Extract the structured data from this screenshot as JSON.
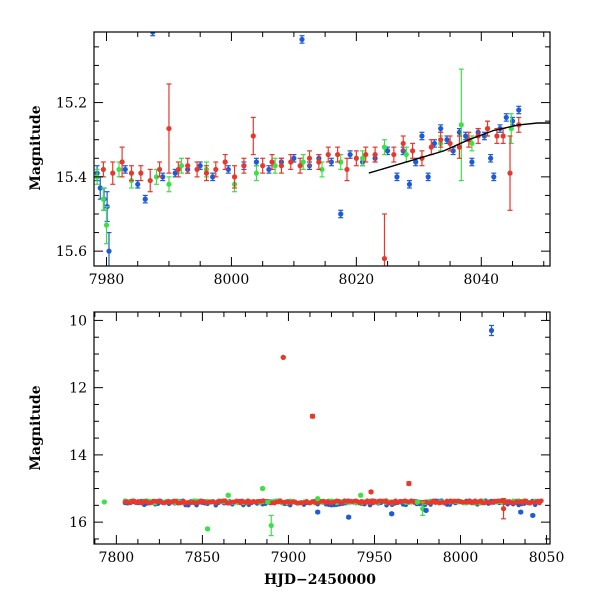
{
  "colors": {
    "blue": "#1f5bd6",
    "red": "#e8382c",
    "green": "#3ee04a",
    "model": "#000000",
    "axes": "#000000"
  },
  "chart_data": [
    {
      "type": "scatter",
      "panel": "top",
      "xlabel": "",
      "ylabel": "Magnitude",
      "xlim": [
        7978,
        8051
      ],
      "ylim": [
        15.64,
        15.01
      ],
      "y_inverted": true,
      "x_ticks": [
        7980,
        8000,
        8020,
        8040
      ],
      "x_tick_labels": [
        "7980",
        "8000",
        "8020",
        "8040"
      ],
      "y_ticks": [
        15.2,
        15.4,
        15.6
      ],
      "y_tick_labels": [
        "15.2",
        "15.4",
        "15.6"
      ],
      "grid": false,
      "series": [
        {
          "color": "blue",
          "points": [
            [
              7978.5,
              15.39,
              0.02
            ],
            [
              7979.0,
              15.43,
              0.03
            ],
            [
              7979.6,
              15.46,
              0.03
            ],
            [
              7980.1,
              15.48,
              0.04
            ],
            [
              7980.4,
              15.6,
              0.05
            ],
            [
              7983.0,
              15.38,
              0.01
            ],
            [
              7985.0,
              15.42,
              0.01
            ],
            [
              7986.2,
              15.46,
              0.01
            ],
            [
              7987.4,
              15.01,
              0.01
            ],
            [
              7989.0,
              15.4,
              0.01
            ],
            [
              7991.0,
              15.39,
              0.01
            ],
            [
              7993.0,
              15.38,
              0.01
            ],
            [
              7995.0,
              15.37,
              0.01
            ],
            [
              7997.0,
              15.4,
              0.01
            ],
            [
              7999.5,
              15.38,
              0.01
            ],
            [
              8002.0,
              15.37,
              0.01
            ],
            [
              8004.0,
              15.36,
              0.01
            ],
            [
              8006.0,
              15.38,
              0.01
            ],
            [
              8008.0,
              15.36,
              0.01
            ],
            [
              8010.0,
              15.35,
              0.01
            ],
            [
              8011.3,
              15.03,
              0.01
            ],
            [
              8012.5,
              15.37,
              0.01
            ],
            [
              8014.0,
              15.35,
              0.01
            ],
            [
              8016.0,
              15.36,
              0.01
            ],
            [
              8017.5,
              15.5,
              0.01
            ],
            [
              8019.0,
              15.34,
              0.01
            ],
            [
              8021.0,
              15.36,
              0.01
            ],
            [
              8023.0,
              15.35,
              0.01
            ],
            [
              8025.0,
              15.33,
              0.01
            ],
            [
              8026.5,
              15.4,
              0.01
            ],
            [
              8027.5,
              15.33,
              0.01
            ],
            [
              8028.5,
              15.42,
              0.01
            ],
            [
              8029.5,
              15.36,
              0.01
            ],
            [
              8030.5,
              15.29,
              0.01
            ],
            [
              8031.5,
              15.4,
              0.01
            ],
            [
              8032.5,
              15.31,
              0.01
            ],
            [
              8033.5,
              15.27,
              0.01
            ],
            [
              8034.5,
              15.3,
              0.01
            ],
            [
              8035.5,
              15.33,
              0.01
            ],
            [
              8036.5,
              15.28,
              0.01
            ],
            [
              8037.5,
              15.29,
              0.01
            ],
            [
              8038.5,
              15.36,
              0.01
            ],
            [
              8039.5,
              15.28,
              0.01
            ],
            [
              8040.5,
              15.29,
              0.01
            ],
            [
              8041.5,
              15.35,
              0.01
            ],
            [
              8042.0,
              15.4,
              0.01
            ],
            [
              8043.0,
              15.27,
              0.01
            ],
            [
              8044.0,
              15.24,
              0.01
            ],
            [
              8045.0,
              15.25,
              0.01
            ],
            [
              8046.0,
              15.22,
              0.01
            ]
          ]
        },
        {
          "color": "green",
          "points": [
            [
              7978.5,
              15.4,
              0.02
            ],
            [
              7979.5,
              15.46,
              0.03
            ],
            [
              7980.0,
              15.53,
              0.05
            ],
            [
              7982.0,
              15.38,
              0.02
            ],
            [
              7984.0,
              15.41,
              0.02
            ],
            [
              7988.0,
              15.4,
              0.02
            ],
            [
              7990.0,
              15.42,
              0.02
            ],
            [
              7992.0,
              15.37,
              0.02
            ],
            [
              7996.0,
              15.38,
              0.02
            ],
            [
              8000.5,
              15.42,
              0.02
            ],
            [
              8004.0,
              15.39,
              0.02
            ],
            [
              8007.0,
              15.37,
              0.02
            ],
            [
              8011.5,
              15.36,
              0.02
            ],
            [
              8014.5,
              15.38,
              0.02
            ],
            [
              8017.5,
              15.36,
              0.02
            ],
            [
              8021.0,
              15.35,
              0.02
            ],
            [
              8024.5,
              15.32,
              0.02
            ],
            [
              8028.0,
              15.34,
              0.02
            ],
            [
              8033.5,
              15.31,
              0.02
            ],
            [
              8036.8,
              15.26,
              0.15
            ],
            [
              8038.5,
              15.31,
              0.02
            ],
            [
              8041.0,
              15.27,
              0.02
            ],
            [
              8044.8,
              15.27,
              0.04
            ]
          ]
        },
        {
          "color": "red",
          "points": [
            [
              7979.5,
              15.38,
              0.02
            ],
            [
              7981.0,
              15.39,
              0.03
            ],
            [
              7982.5,
              15.36,
              0.04
            ],
            [
              7984.0,
              15.39,
              0.02
            ],
            [
              7985.5,
              15.39,
              0.02
            ],
            [
              7987.0,
              15.41,
              0.03
            ],
            [
              7988.5,
              15.38,
              0.02
            ],
            [
              7990.0,
              15.27,
              0.12
            ],
            [
              7991.5,
              15.38,
              0.02
            ],
            [
              7993.0,
              15.37,
              0.02
            ],
            [
              7994.5,
              15.38,
              0.02
            ],
            [
              7996.0,
              15.39,
              0.02
            ],
            [
              7997.5,
              15.38,
              0.02
            ],
            [
              7999.0,
              15.36,
              0.02
            ],
            [
              8000.5,
              15.4,
              0.03
            ],
            [
              8002.0,
              15.37,
              0.02
            ],
            [
              8003.5,
              15.29,
              0.05
            ],
            [
              8005.0,
              15.37,
              0.02
            ],
            [
              8006.5,
              15.36,
              0.02
            ],
            [
              8008.0,
              15.37,
              0.02
            ],
            [
              8009.5,
              15.36,
              0.02
            ],
            [
              8011.0,
              15.37,
              0.02
            ],
            [
              8012.5,
              15.35,
              0.02
            ],
            [
              8014.0,
              15.36,
              0.02
            ],
            [
              8015.5,
              15.34,
              0.02
            ],
            [
              8017.0,
              15.34,
              0.02
            ],
            [
              8018.5,
              15.38,
              0.03
            ],
            [
              8020.0,
              15.35,
              0.02
            ],
            [
              8021.5,
              15.34,
              0.02
            ],
            [
              8023.0,
              15.34,
              0.02
            ],
            [
              8024.5,
              15.62,
              0.12
            ],
            [
              8026.0,
              15.34,
              0.02
            ],
            [
              8027.5,
              15.31,
              0.02
            ],
            [
              8029.0,
              15.33,
              0.02
            ],
            [
              8030.5,
              15.35,
              0.02
            ],
            [
              8032.0,
              15.32,
              0.02
            ],
            [
              8033.5,
              15.3,
              0.02
            ],
            [
              8035.0,
              15.31,
              0.02
            ],
            [
              8036.5,
              15.32,
              0.03
            ],
            [
              8038.0,
              15.3,
              0.02
            ],
            [
              8039.5,
              15.29,
              0.02
            ],
            [
              8041.0,
              15.27,
              0.02
            ],
            [
              8042.5,
              15.29,
              0.02
            ],
            [
              8043.5,
              15.29,
              0.02
            ],
            [
              8044.6,
              15.39,
              0.1
            ],
            [
              8046.0,
              15.26,
              0.02
            ]
          ]
        }
      ],
      "model_curve": [
        [
          8022,
          15.39
        ],
        [
          8026,
          15.37
        ],
        [
          8030,
          15.35
        ],
        [
          8034,
          15.33
        ],
        [
          8038,
          15.3
        ],
        [
          8042,
          15.275
        ],
        [
          8046,
          15.26
        ],
        [
          8049,
          15.255
        ],
        [
          8051,
          15.255
        ]
      ]
    },
    {
      "type": "scatter",
      "panel": "bottom",
      "xlabel": "HJD−2450000",
      "ylabel": "Magnitude",
      "xlim": [
        7787,
        8052
      ],
      "ylim": [
        16.65,
        9.75
      ],
      "y_inverted": true,
      "x_ticks": [
        7800,
        7850,
        7900,
        7950,
        8000,
        8050
      ],
      "x_tick_labels": [
        "7800",
        "7850",
        "7900",
        "7950",
        "8000",
        "8050"
      ],
      "y_ticks": [
        10,
        12,
        14,
        16
      ],
      "y_tick_labels": [
        "10",
        "12",
        "14",
        "16"
      ],
      "grid": false,
      "series": [
        {
          "color": "green",
          "points": [
            [
              7793,
              15.4,
              0.02
            ],
            [
              7853,
              16.2,
              0.03
            ],
            [
              7865,
              15.2,
              0.03
            ],
            [
              7885,
              15.0,
              0.03
            ],
            [
              7888,
              15.4,
              0.03
            ],
            [
              7890,
              16.1,
              0.3
            ],
            [
              7917,
              15.3,
              0.03
            ],
            [
              7942,
              15.2,
              0.03
            ],
            [
              7975,
              15.4,
              0.03
            ],
            [
              7978,
              15.6,
              0.2
            ]
          ]
        },
        {
          "color": "red",
          "points": [
            [
              7897,
              11.1,
              0.02
            ],
            [
              7914,
              12.85,
              0.05
            ],
            [
              7948,
              15.1,
              0.03
            ],
            [
              7970,
              14.85,
              0.05
            ],
            [
              8025,
              15.6,
              0.3
            ]
          ]
        },
        {
          "color": "blue",
          "points": [
            [
              7917,
              15.7,
              0.03
            ],
            [
              7935,
              15.85,
              0.03
            ],
            [
              7960,
              15.75,
              0.03
            ],
            [
              7980,
              15.65,
              0.03
            ],
            [
              8018,
              10.3,
              0.15
            ],
            [
              8035,
              15.7,
              0.03
            ],
            [
              8042,
              15.8,
              0.03
            ]
          ]
        }
      ],
      "dense_band": {
        "x_range": [
          7805,
          8048
        ],
        "y": 15.4
      }
    }
  ]
}
